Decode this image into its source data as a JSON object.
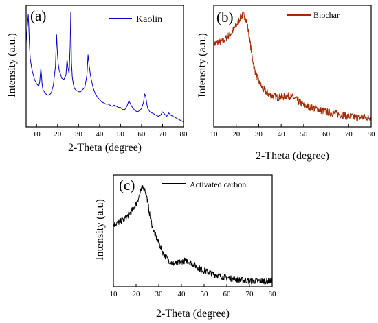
{
  "chart_data": [
    {
      "type": "line",
      "panel_label": "(a)",
      "xlabel": "2-Theta (degree)",
      "ylabel": "Intensity (a.u.)",
      "xlim": [
        5,
        80
      ],
      "x_ticks": [
        10,
        20,
        30,
        40,
        50,
        60,
        70,
        80
      ],
      "y_tick_labels": false,
      "grid": false,
      "legend_position": "top-right",
      "series": [
        {
          "name": "Kaolin",
          "color": "#0000cc",
          "x": [
            5,
            5.5,
            6,
            6.3,
            6.6,
            7,
            7.5,
            8,
            9,
            10,
            11,
            11.5,
            12,
            12.3,
            12.6,
            13,
            14,
            15,
            16,
            17,
            18,
            19,
            19.5,
            19.9,
            20.3,
            20.8,
            21.5,
            22,
            23,
            24,
            24.5,
            25,
            25.5,
            26,
            26.3,
            26.6,
            27,
            27.5,
            28,
            29,
            30,
            31,
            32,
            33,
            34,
            34.5,
            35,
            35.5,
            36,
            37,
            38,
            39,
            40,
            41,
            42,
            43,
            44,
            45,
            46,
            47,
            48,
            49,
            50,
            51,
            52,
            53,
            54,
            55,
            56,
            57,
            58,
            59,
            60,
            61,
            61.5,
            62,
            62.5,
            63,
            64,
            65,
            66,
            67,
            68,
            69,
            70,
            71,
            72,
            73,
            74,
            75,
            76,
            77,
            78,
            79,
            80
          ],
          "y": [
            72,
            86,
            98,
            86,
            70,
            58,
            52,
            47,
            40,
            36,
            34,
            38,
            50,
            44,
            36,
            31,
            28,
            26,
            26,
            28,
            35,
            52,
            80,
            64,
            54,
            48,
            44,
            41,
            40,
            44,
            58,
            50,
            45,
            70,
            100,
            55,
            42,
            36,
            32,
            30,
            29,
            29,
            31,
            33,
            44,
            62,
            53,
            46,
            40,
            32,
            27,
            24,
            22,
            20,
            19,
            18,
            18,
            17,
            16,
            17,
            16,
            15,
            15,
            13,
            13,
            16,
            21,
            17,
            14,
            12,
            11,
            12,
            14,
            20,
            27,
            25,
            18,
            14,
            11,
            10,
            9,
            8,
            7,
            8,
            11,
            9,
            7,
            10,
            8,
            7,
            6,
            5,
            4,
            3,
            2
          ]
        }
      ]
    },
    {
      "type": "line",
      "panel_label": "(b)",
      "xlabel": "2-Theta (degree)",
      "ylabel": "Intensity (a.u.)",
      "xlim": [
        10,
        80
      ],
      "x_ticks": [
        10,
        20,
        30,
        40,
        50,
        60,
        70,
        80
      ],
      "y_tick_labels": false,
      "grid": false,
      "legend_position": "top-right",
      "series": [
        {
          "name": "Biochar",
          "color": "#a52a00",
          "x": [
            10,
            12,
            14,
            16,
            18,
            20,
            22,
            23,
            24,
            25,
            26,
            27,
            28,
            30,
            32,
            35,
            38,
            40,
            42,
            44,
            46,
            48,
            50,
            55,
            60,
            65,
            70,
            75,
            80
          ],
          "y": [
            72,
            73,
            74,
            78,
            82,
            88,
            96,
            98,
            96,
            88,
            75,
            62,
            50,
            38,
            31,
            26,
            24,
            24,
            25,
            25,
            23,
            20,
            17,
            14,
            11,
            9,
            7,
            6,
            6
          ]
        }
      ]
    },
    {
      "type": "line",
      "panel_label": "(c)",
      "xlabel": "2-Theta (degree)",
      "ylabel": "Intensity (a.u)",
      "xlim": [
        10,
        80
      ],
      "x_ticks": [
        10,
        20,
        30,
        40,
        50,
        60,
        70,
        80
      ],
      "y_tick_labels": false,
      "grid": false,
      "legend_position": "top-right",
      "series": [
        {
          "name": "Activated carbon",
          "color": "#000000",
          "x": [
            10,
            12,
            14,
            16,
            18,
            20,
            22,
            23,
            24,
            25,
            26,
            27,
            28,
            30,
            32,
            34,
            36,
            38,
            40,
            42,
            44,
            46,
            48,
            50,
            55,
            60,
            65,
            70,
            75,
            80
          ],
          "y": [
            58,
            60,
            62,
            66,
            71,
            78,
            90,
            96,
            92,
            82,
            68,
            58,
            50,
            40,
            30,
            24,
            20,
            20,
            22,
            23,
            21,
            18,
            15,
            13,
            9,
            6,
            4,
            3,
            3,
            3
          ]
        }
      ]
    }
  ]
}
